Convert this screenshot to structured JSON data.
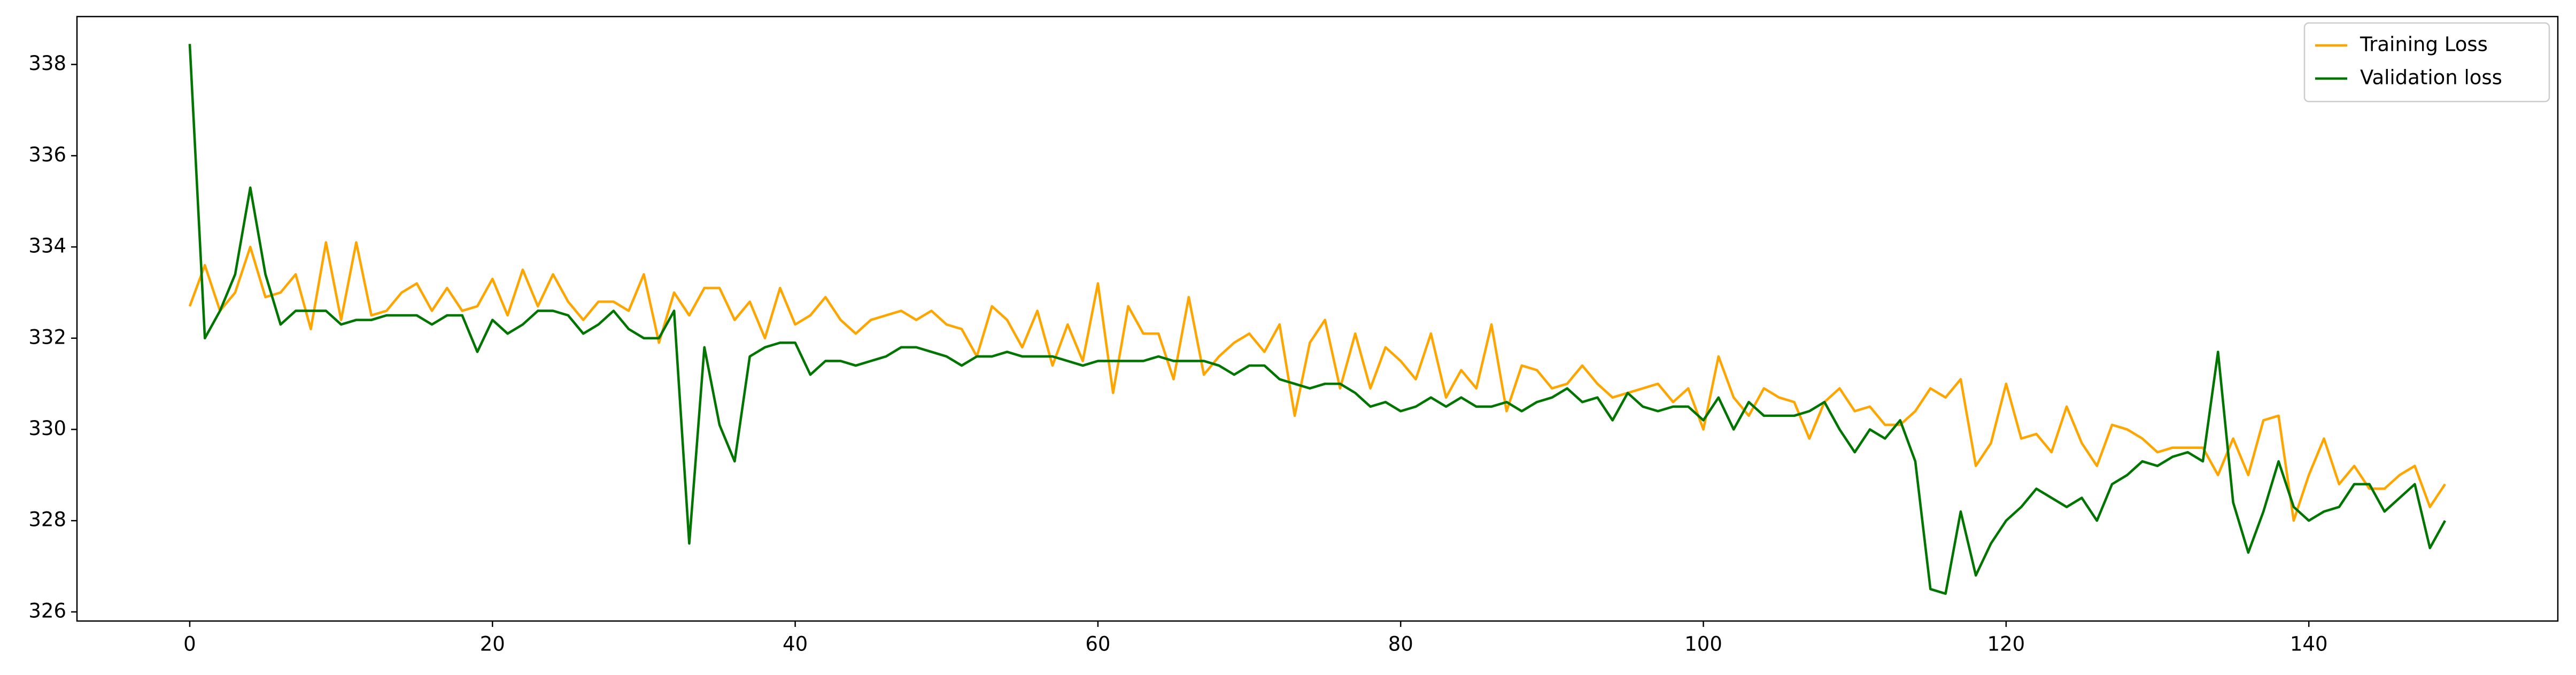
{
  "chart_data": {
    "type": "line",
    "x": [
      0,
      1,
      2,
      3,
      4,
      5,
      6,
      7,
      8,
      9,
      10,
      11,
      12,
      13,
      14,
      15,
      16,
      17,
      18,
      19,
      20,
      21,
      22,
      23,
      24,
      25,
      26,
      27,
      28,
      29,
      30,
      31,
      32,
      33,
      34,
      35,
      36,
      37,
      38,
      39,
      40,
      41,
      42,
      43,
      44,
      45,
      46,
      47,
      48,
      49,
      50,
      51,
      52,
      53,
      54,
      55,
      56,
      57,
      58,
      59,
      60,
      61,
      62,
      63,
      64,
      65,
      66,
      67,
      68,
      69,
      70,
      71,
      72,
      73,
      74,
      75,
      76,
      77,
      78,
      79,
      80,
      81,
      82,
      83,
      84,
      85,
      86,
      87,
      88,
      89,
      90,
      91,
      92,
      93,
      94,
      95,
      96,
      97,
      98,
      99,
      100,
      101,
      102,
      103,
      104,
      105,
      106,
      107,
      108,
      109,
      110,
      111,
      112,
      113,
      114,
      115,
      116,
      117,
      118,
      119,
      120,
      121,
      122,
      123,
      124,
      125,
      126,
      127,
      128,
      129,
      130,
      131,
      132,
      133,
      134,
      135,
      136,
      137,
      138,
      139,
      140,
      141,
      142,
      143,
      144,
      145,
      146,
      147,
      148,
      149
    ],
    "series": [
      {
        "name": "Training Loss",
        "color": "#ffa500",
        "values": [
          332.7,
          333.6,
          332.6,
          333.0,
          334.0,
          332.9,
          333.0,
          333.4,
          332.2,
          334.1,
          332.4,
          334.1,
          332.5,
          332.6,
          333.0,
          333.2,
          332.6,
          333.1,
          332.6,
          332.7,
          333.3,
          332.5,
          333.5,
          332.7,
          333.4,
          332.8,
          332.4,
          332.8,
          332.8,
          332.6,
          333.4,
          331.9,
          333.0,
          332.5,
          333.1,
          333.1,
          332.4,
          332.8,
          332.0,
          333.1,
          332.3,
          332.5,
          332.9,
          332.4,
          332.1,
          332.4,
          332.5,
          332.6,
          332.4,
          332.6,
          332.3,
          332.2,
          331.6,
          332.7,
          332.4,
          331.8,
          332.6,
          331.4,
          332.3,
          331.5,
          333.2,
          330.8,
          332.7,
          332.1,
          332.1,
          331.1,
          332.9,
          331.2,
          331.6,
          331.9,
          332.1,
          331.7,
          332.3,
          330.3,
          331.9,
          332.4,
          330.9,
          332.1,
          330.9,
          331.8,
          331.5,
          331.1,
          332.1,
          330.7,
          331.3,
          330.9,
          332.3,
          330.4,
          331.4,
          331.3,
          330.9,
          331.0,
          331.4,
          331.0,
          330.7,
          330.8,
          330.9,
          331.0,
          330.6,
          330.9,
          330.0,
          331.6,
          330.7,
          330.3,
          330.9,
          330.7,
          330.6,
          329.8,
          330.6,
          330.9,
          330.4,
          330.5,
          330.1,
          330.1,
          330.4,
          330.9,
          330.7,
          331.1,
          329.2,
          329.7,
          331.0,
          329.8,
          329.9,
          329.5,
          330.5,
          329.7,
          329.2,
          330.1,
          330.0,
          329.8,
          329.5,
          329.6,
          329.6,
          329.6,
          329.0,
          329.8,
          329.0,
          330.2,
          330.3,
          328.0,
          329.0,
          329.8,
          328.8,
          329.2,
          328.7,
          328.7,
          329.0,
          329.2,
          328.3,
          328.8
        ]
      },
      {
        "name": "Validation loss",
        "color": "#007500",
        "values": [
          338.45,
          332.0,
          332.6,
          333.4,
          335.3,
          333.4,
          332.3,
          332.6,
          332.6,
          332.6,
          332.3,
          332.4,
          332.4,
          332.5,
          332.5,
          332.5,
          332.3,
          332.5,
          332.5,
          331.7,
          332.4,
          332.1,
          332.3,
          332.6,
          332.6,
          332.5,
          332.1,
          332.3,
          332.6,
          332.2,
          332.0,
          332.0,
          332.6,
          327.5,
          331.8,
          330.1,
          329.3,
          331.6,
          331.8,
          331.9,
          331.9,
          331.2,
          331.5,
          331.5,
          331.4,
          331.5,
          331.6,
          331.8,
          331.8,
          331.7,
          331.6,
          331.4,
          331.6,
          331.6,
          331.7,
          331.6,
          331.6,
          331.6,
          331.5,
          331.4,
          331.5,
          331.5,
          331.5,
          331.5,
          331.6,
          331.5,
          331.5,
          331.5,
          331.4,
          331.2,
          331.4,
          331.4,
          331.1,
          331.0,
          330.9,
          331.0,
          331.0,
          330.8,
          330.5,
          330.6,
          330.4,
          330.5,
          330.7,
          330.5,
          330.7,
          330.5,
          330.5,
          330.6,
          330.4,
          330.6,
          330.7,
          330.9,
          330.6,
          330.7,
          330.2,
          330.8,
          330.5,
          330.4,
          330.5,
          330.5,
          330.2,
          330.7,
          330.0,
          330.6,
          330.3,
          330.3,
          330.3,
          330.4,
          330.6,
          330.0,
          329.5,
          330.0,
          329.8,
          330.2,
          329.3,
          326.5,
          326.4,
          328.2,
          326.8,
          327.5,
          328.0,
          328.3,
          328.7,
          328.5,
          328.3,
          328.5,
          328.0,
          328.8,
          329.0,
          329.3,
          329.2,
          329.4,
          329.5,
          329.3,
          331.7,
          328.4,
          327.3,
          328.2,
          329.3,
          328.3,
          328.0,
          328.2,
          328.3,
          328.8,
          328.8,
          328.2,
          328.5,
          328.8,
          327.4,
          328.0
        ]
      }
    ],
    "xlim": [
      -7.45,
      156.45
    ],
    "xticks": [
      0,
      20,
      40,
      60,
      80,
      100,
      120,
      140
    ],
    "ylim": [
      325.8,
      339.05
    ],
    "yticks": [
      326,
      328,
      330,
      332,
      334,
      336,
      338
    ],
    "grid": false,
    "legend": "upper right"
  }
}
